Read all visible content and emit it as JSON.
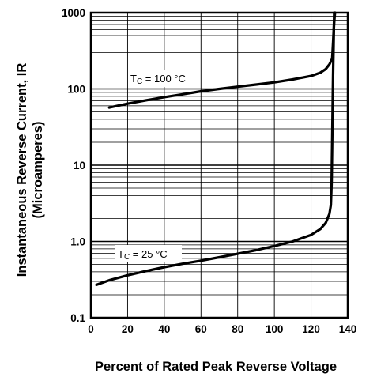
{
  "chart_data": {
    "type": "line",
    "scale": {
      "x": "linear",
      "y": "log"
    },
    "xlim": [
      0,
      140
    ],
    "ylim": [
      0.1,
      1000
    ],
    "grid": true,
    "xlabel": "Percent of Rated Peak Reverse Voltage",
    "ylabel_line1": "Instantaneous Reverse Current, IR",
    "ylabel_line2": "(Microamperes)",
    "x_ticks": [
      {
        "value": 0,
        "label": "0"
      },
      {
        "value": 20,
        "label": "20"
      },
      {
        "value": 40,
        "label": "40"
      },
      {
        "value": 60,
        "label": "60"
      },
      {
        "value": 80,
        "label": "80"
      },
      {
        "value": 100,
        "label": "100"
      },
      {
        "value": 120,
        "label": "120"
      },
      {
        "value": 140,
        "label": "140"
      }
    ],
    "y_ticks": [
      {
        "value": 0.1,
        "label": "0.1"
      },
      {
        "value": 1,
        "label": "1.0"
      },
      {
        "value": 10,
        "label": "10"
      },
      {
        "value": 100,
        "label": "100"
      },
      {
        "value": 1000,
        "label": "1000"
      }
    ],
    "series": [
      {
        "name": "TC = 100 °C",
        "points": [
          [
            10,
            57
          ],
          [
            20,
            64
          ],
          [
            30,
            71
          ],
          [
            40,
            78
          ],
          [
            50,
            85
          ],
          [
            60,
            93
          ],
          [
            70,
            100
          ],
          [
            80,
            107
          ],
          [
            90,
            114
          ],
          [
            100,
            122
          ],
          [
            110,
            133
          ],
          [
            120,
            148
          ],
          [
            125,
            163
          ],
          [
            128,
            182
          ],
          [
            130,
            210
          ],
          [
            131.5,
            250
          ],
          [
            132,
            400
          ],
          [
            132.5,
            700
          ],
          [
            133,
            1000
          ]
        ]
      },
      {
        "name": "TC = 25 °C",
        "points": [
          [
            3,
            0.27
          ],
          [
            10,
            0.31
          ],
          [
            20,
            0.36
          ],
          [
            30,
            0.41
          ],
          [
            40,
            0.46
          ],
          [
            50,
            0.51
          ],
          [
            60,
            0.56
          ],
          [
            70,
            0.62
          ],
          [
            80,
            0.69
          ],
          [
            90,
            0.77
          ],
          [
            100,
            0.87
          ],
          [
            110,
            1.0
          ],
          [
            120,
            1.22
          ],
          [
            125,
            1.45
          ],
          [
            128,
            1.75
          ],
          [
            130,
            2.3
          ],
          [
            130.8,
            3
          ],
          [
            131.2,
            6
          ],
          [
            131.6,
            30
          ],
          [
            132,
            150
          ],
          [
            132.4,
            600
          ],
          [
            132.6,
            1000
          ]
        ]
      }
    ],
    "annotations": [
      {
        "prefix": "T",
        "sub": "C",
        "suffix": " = 100 °C",
        "series_index": 0
      },
      {
        "prefix": "T",
        "sub": "C",
        "suffix": " = 25 °C",
        "series_index": 1
      }
    ]
  },
  "style": {
    "line_color": "#000000",
    "grid_color": "#000000",
    "background": "#ffffff"
  }
}
